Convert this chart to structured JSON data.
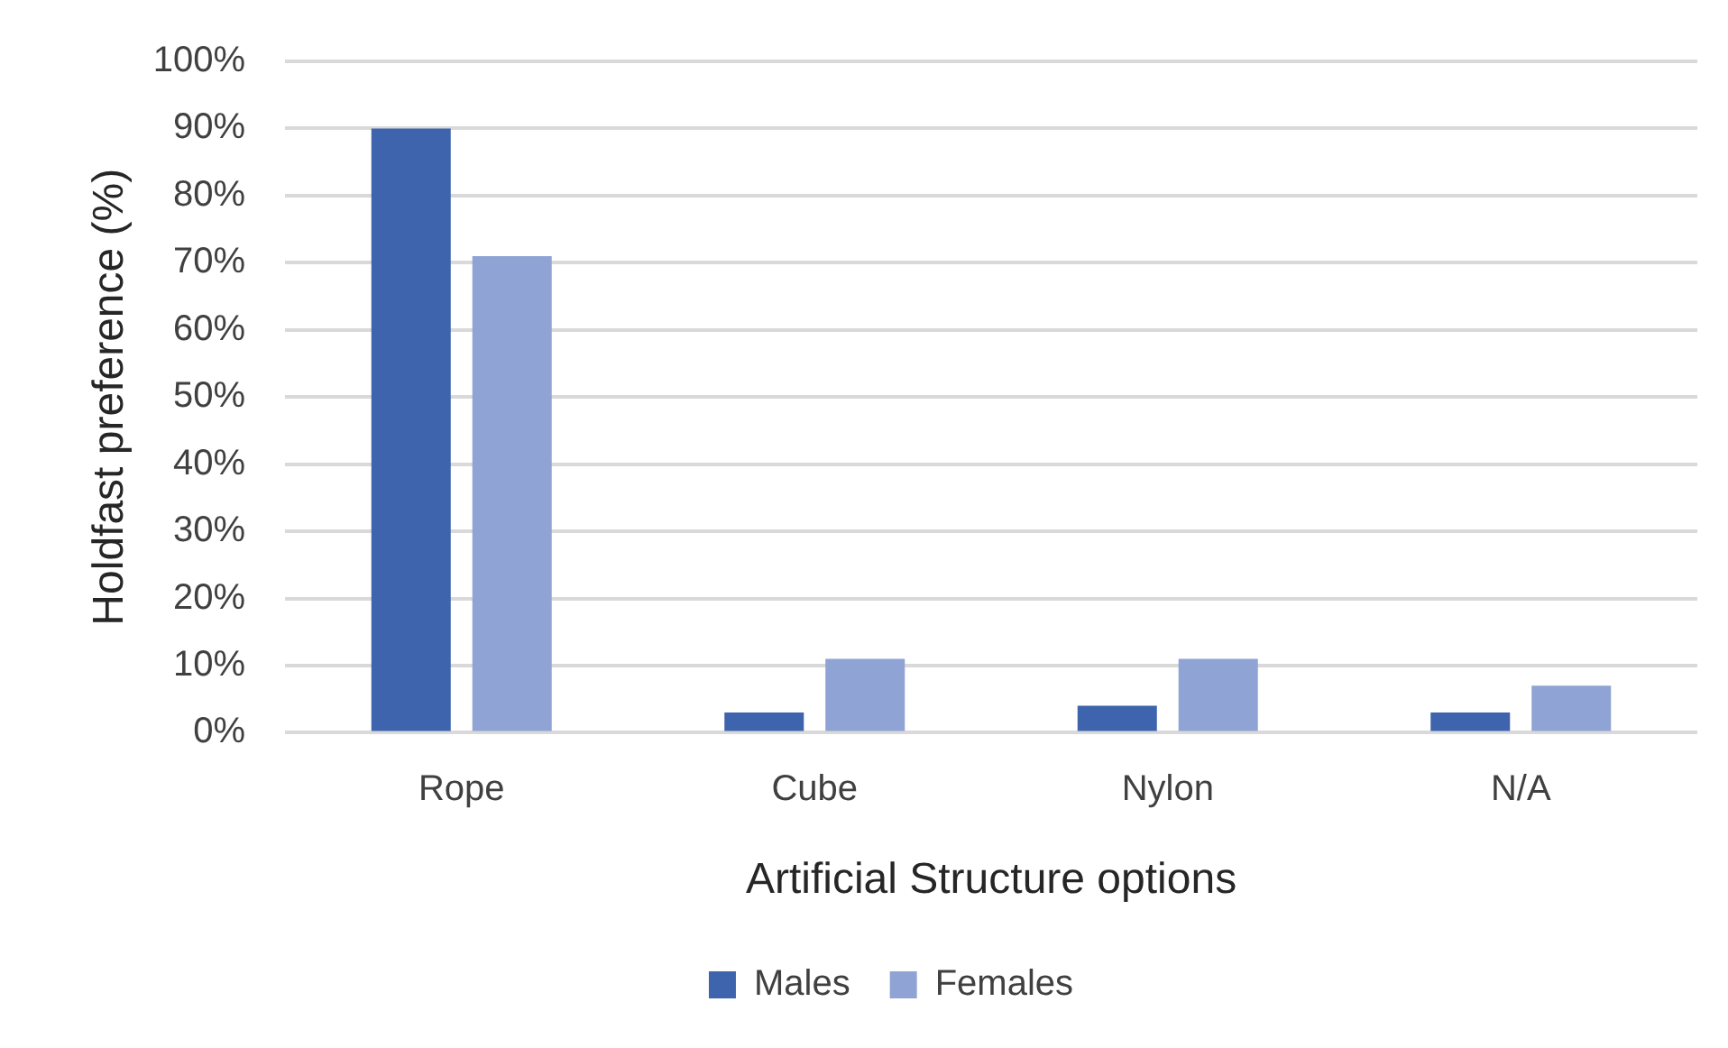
{
  "chart_data": {
    "type": "bar",
    "xlabel": "Artificial Structure options",
    "ylabel": "Holdfast preference (%)",
    "categories": [
      "Rope",
      "Cube",
      "Nylon",
      "N/A"
    ],
    "series": [
      {
        "name": "Males",
        "color": "#3d64ad",
        "values": [
          90,
          3,
          4,
          3
        ]
      },
      {
        "name": "Females",
        "color": "#8fa3d4",
        "values": [
          71,
          11,
          11,
          7
        ]
      }
    ],
    "ylim": [
      0,
      100
    ],
    "yticks": [
      {
        "value": 0,
        "label": "0%"
      },
      {
        "value": 10,
        "label": "10%"
      },
      {
        "value": 20,
        "label": "20%"
      },
      {
        "value": 30,
        "label": "30%"
      },
      {
        "value": 40,
        "label": "40%"
      },
      {
        "value": 50,
        "label": "50%"
      },
      {
        "value": 60,
        "label": "60%"
      },
      {
        "value": 70,
        "label": "70%"
      },
      {
        "value": 80,
        "label": "80%"
      },
      {
        "value": 90,
        "label": "90%"
      },
      {
        "value": 100,
        "label": "100%"
      }
    ],
    "grid": "y",
    "legend": "bottom"
  }
}
